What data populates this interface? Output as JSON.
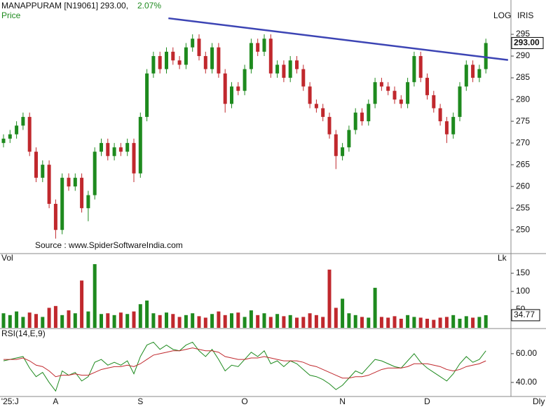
{
  "header": {
    "symbol": "MANAPPURAM [N19061]",
    "price": "293.00,",
    "change": "2.07%",
    "panel_label": "Price",
    "log": "LOG",
    "iris": "IRIS",
    "source": "Source : www.SpiderSoftwareIndia.com",
    "last_price_label": "293.00",
    "period": "Dly"
  },
  "chart_data": [
    {
      "type": "candlestick",
      "categories": [
        null,
        "'25:J",
        null,
        null,
        null,
        null,
        null,
        null,
        "A",
        null,
        null,
        null,
        null,
        null,
        null,
        null,
        null,
        null,
        null,
        null,
        null,
        "S",
        null,
        null,
        null,
        null,
        null,
        null,
        null,
        null,
        null,
        null,
        null,
        null,
        null,
        null,
        null,
        "O",
        null,
        null,
        null,
        null,
        null,
        null,
        null,
        null,
        null,
        null,
        null,
        null,
        null,
        null,
        "N",
        null,
        null,
        null,
        null,
        null,
        null,
        null,
        null,
        null,
        null,
        null,
        null,
        "D",
        null,
        null,
        null,
        null,
        null,
        null,
        null,
        null,
        null
      ],
      "open": [
        270,
        271,
        272,
        274,
        276,
        268,
        262,
        265,
        256,
        250,
        262,
        260,
        262,
        255,
        258,
        268,
        270,
        267,
        269,
        268,
        270,
        263,
        276,
        286,
        290,
        287,
        291,
        289,
        288,
        292,
        294,
        290,
        287,
        292,
        286,
        279,
        283,
        282,
        287,
        293,
        291,
        294,
        286,
        288,
        285,
        289,
        287,
        283,
        279,
        278,
        276,
        272,
        267,
        269,
        273,
        277,
        275,
        279,
        284,
        283,
        282,
        280,
        279,
        284,
        290,
        285,
        281,
        278,
        275,
        272,
        276,
        283,
        288,
        285,
        287
      ],
      "high": [
        272,
        273,
        275,
        277,
        277,
        269,
        266,
        266,
        257,
        263,
        263,
        263,
        263,
        259,
        269,
        271,
        271,
        270,
        270,
        271,
        271,
        277,
        287,
        291,
        291,
        292,
        292,
        290,
        293,
        295,
        295,
        291,
        293,
        293,
        287,
        284,
        284,
        288,
        294,
        294,
        295,
        295,
        289,
        289,
        290,
        290,
        288,
        284,
        280,
        279,
        277,
        273,
        270,
        274,
        278,
        278,
        280,
        285,
        285,
        284,
        283,
        281,
        285,
        291,
        291,
        286,
        282,
        279,
        276,
        277,
        284,
        289,
        289,
        288,
        294
      ],
      "low": [
        269,
        270,
        271,
        273,
        267,
        261,
        261,
        255,
        248,
        249,
        259,
        259,
        254,
        252,
        257,
        267,
        266,
        266,
        267,
        267,
        261,
        262,
        275,
        285,
        286,
        286,
        288,
        287,
        287,
        291,
        289,
        286,
        286,
        285,
        277,
        278,
        281,
        281,
        286,
        290,
        290,
        285,
        285,
        284,
        284,
        286,
        282,
        278,
        277,
        275,
        271,
        264,
        266,
        268,
        272,
        274,
        274,
        278,
        282,
        281,
        279,
        278,
        278,
        283,
        284,
        280,
        277,
        274,
        270,
        271,
        275,
        282,
        284,
        284,
        286
      ],
      "close": [
        271,
        272,
        274,
        276,
        268,
        262,
        265,
        256,
        250,
        262,
        260,
        262,
        255,
        258,
        268,
        270,
        267,
        269,
        268,
        270,
        263,
        276,
        286,
        290,
        287,
        291,
        289,
        288,
        292,
        294,
        290,
        287,
        292,
        286,
        279,
        283,
        282,
        287,
        293,
        291,
        294,
        286,
        288,
        285,
        289,
        287,
        283,
        279,
        278,
        276,
        272,
        267,
        269,
        273,
        277,
        275,
        279,
        284,
        283,
        282,
        280,
        279,
        284,
        290,
        285,
        281,
        278,
        275,
        272,
        276,
        283,
        288,
        285,
        287,
        293
      ],
      "up_color": "#1e8a1e",
      "down_color": "#c0282d",
      "ylim": [
        245.2,
        302.9
      ],
      "yticks": [
        250,
        255,
        260,
        265,
        270,
        275,
        280,
        285,
        290,
        295
      ],
      "trendline": {
        "start": [
          25.3,
          298.7
        ],
        "end": [
          77.4,
          289.1
        ],
        "color": "#3c44b4"
      }
    },
    {
      "type": "bar",
      "title": "Vol",
      "unit_label": "Lk",
      "values": [
        40,
        35,
        45,
        30,
        42,
        38,
        30,
        55,
        60,
        35,
        48,
        40,
        130,
        45,
        175,
        38,
        40,
        35,
        42,
        38,
        45,
        65,
        75,
        40,
        35,
        42,
        38,
        30,
        35,
        40,
        32,
        28,
        38,
        45,
        35,
        40,
        42,
        30,
        48,
        35,
        40,
        30,
        38,
        32,
        35,
        28,
        30,
        40,
        35,
        30,
        160,
        55,
        80,
        40,
        35,
        30,
        28,
        110,
        30,
        28,
        32,
        25,
        35,
        30,
        28,
        25,
        22,
        28,
        30,
        35,
        25,
        32,
        28,
        30,
        34.77
      ],
      "ylim": [
        0,
        204
      ],
      "yticks": [
        50,
        100,
        150
      ]
    },
    {
      "type": "line",
      "title": "RSI(14,E,9)",
      "series": [
        {
          "color": "#1e8a1e",
          "values": [
            55,
            56,
            57,
            58,
            50,
            44,
            47,
            40,
            34,
            48,
            45,
            47,
            41,
            44,
            54,
            56,
            52,
            54,
            52,
            55,
            46,
            58,
            66,
            68,
            63,
            66,
            63,
            62,
            66,
            68,
            62,
            58,
            63,
            56,
            48,
            52,
            51,
            56,
            61,
            58,
            62,
            53,
            55,
            51,
            55,
            53,
            49,
            45,
            44,
            42,
            39,
            35,
            38,
            43,
            48,
            46,
            51,
            56,
            55,
            53,
            51,
            50,
            55,
            60,
            54,
            50,
            47,
            44,
            41,
            46,
            53,
            58,
            54,
            56,
            62
          ]
        },
        {
          "color": "#c0282d",
          "values": [
            56,
            56,
            56,
            57,
            55,
            52,
            51,
            48,
            44,
            45,
            45,
            46,
            45,
            45,
            47,
            49,
            50,
            51,
            51,
            52,
            51,
            53,
            56,
            59,
            60,
            61,
            62,
            62,
            63,
            64,
            63,
            62,
            62,
            61,
            58,
            57,
            56,
            56,
            57,
            57,
            58,
            57,
            56,
            55,
            55,
            55,
            54,
            52,
            51,
            49,
            47,
            45,
            43,
            43,
            44,
            44,
            45,
            47,
            49,
            50,
            50,
            50,
            51,
            53,
            53,
            53,
            52,
            51,
            49,
            48,
            49,
            51,
            52,
            53,
            55
          ]
        }
      ],
      "ylim": [
        30.7,
        77
      ],
      "yticks": [
        {
          "value": 40,
          "label": "40.00"
        },
        {
          "value": 60,
          "label": "60.00"
        }
      ]
    }
  ]
}
